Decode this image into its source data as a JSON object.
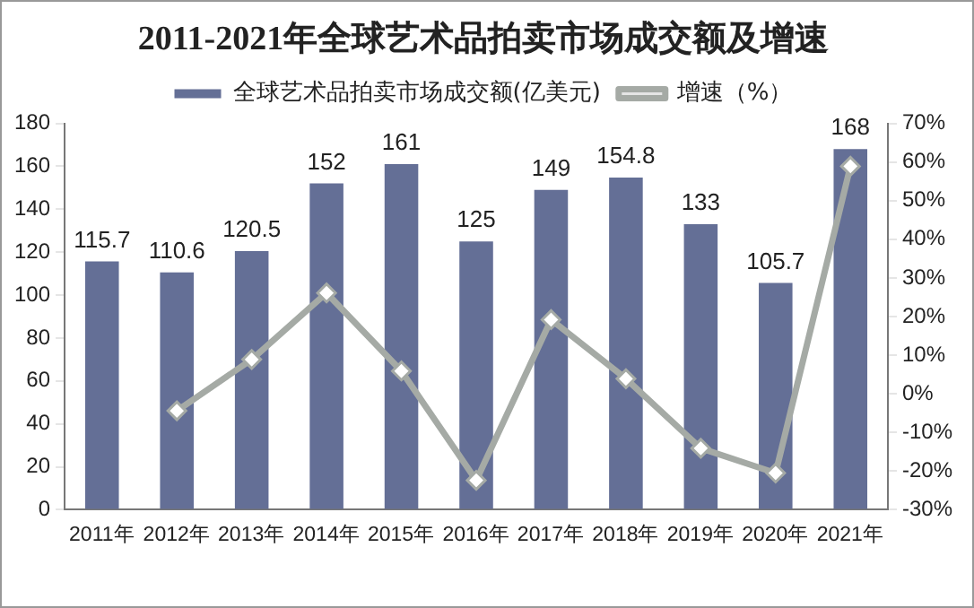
{
  "chart_data": {
    "type": "bar",
    "title": "2011-2021年全球艺术品拍卖市场成交额及增速",
    "categories": [
      "2011年",
      "2012年",
      "2013年",
      "2014年",
      "2015年",
      "2016年",
      "2017年",
      "2018年",
      "2019年",
      "2020年",
      "2021年"
    ],
    "series": [
      {
        "name": "全球艺术品拍卖市场成交额(亿美元)",
        "color": "#646f96",
        "values": [
          115.7,
          110.6,
          120.5,
          152,
          161,
          125,
          149,
          154.8,
          133,
          105.7,
          168
        ],
        "value_labels": [
          "115.7",
          "110.6",
          "120.5",
          "152",
          "161",
          "125",
          "149",
          "154.8",
          "133",
          "105.7",
          "168"
        ]
      },
      {
        "name": "增速（%）",
        "type": "line",
        "axis": "y2",
        "color": "#a5aaa5",
        "marker": "diamond",
        "values": [
          null,
          -4.4,
          8.9,
          26.1,
          5.9,
          -22.4,
          19.2,
          3.9,
          -14.1,
          -20.5,
          58.9
        ]
      }
    ],
    "ylim": [
      0,
      180
    ],
    "yticks": [
      0,
      20,
      40,
      60,
      80,
      100,
      120,
      140,
      160,
      180
    ],
    "y2lim": [
      -30,
      70
    ],
    "y2ticks": [
      {
        "value": -30,
        "label": "-30%"
      },
      {
        "value": -20,
        "label": "-20%"
      },
      {
        "value": -10,
        "label": "-10%"
      },
      {
        "value": 0,
        "label": "0%"
      },
      {
        "value": 10,
        "label": "10%"
      },
      {
        "value": 20,
        "label": "20%"
      },
      {
        "value": 30,
        "label": "30%"
      },
      {
        "value": 40,
        "label": "40%"
      },
      {
        "value": 50,
        "label": "50%"
      },
      {
        "value": 60,
        "label": "60%"
      },
      {
        "value": 70,
        "label": "70%"
      }
    ],
    "grid": false,
    "legend": "top"
  }
}
